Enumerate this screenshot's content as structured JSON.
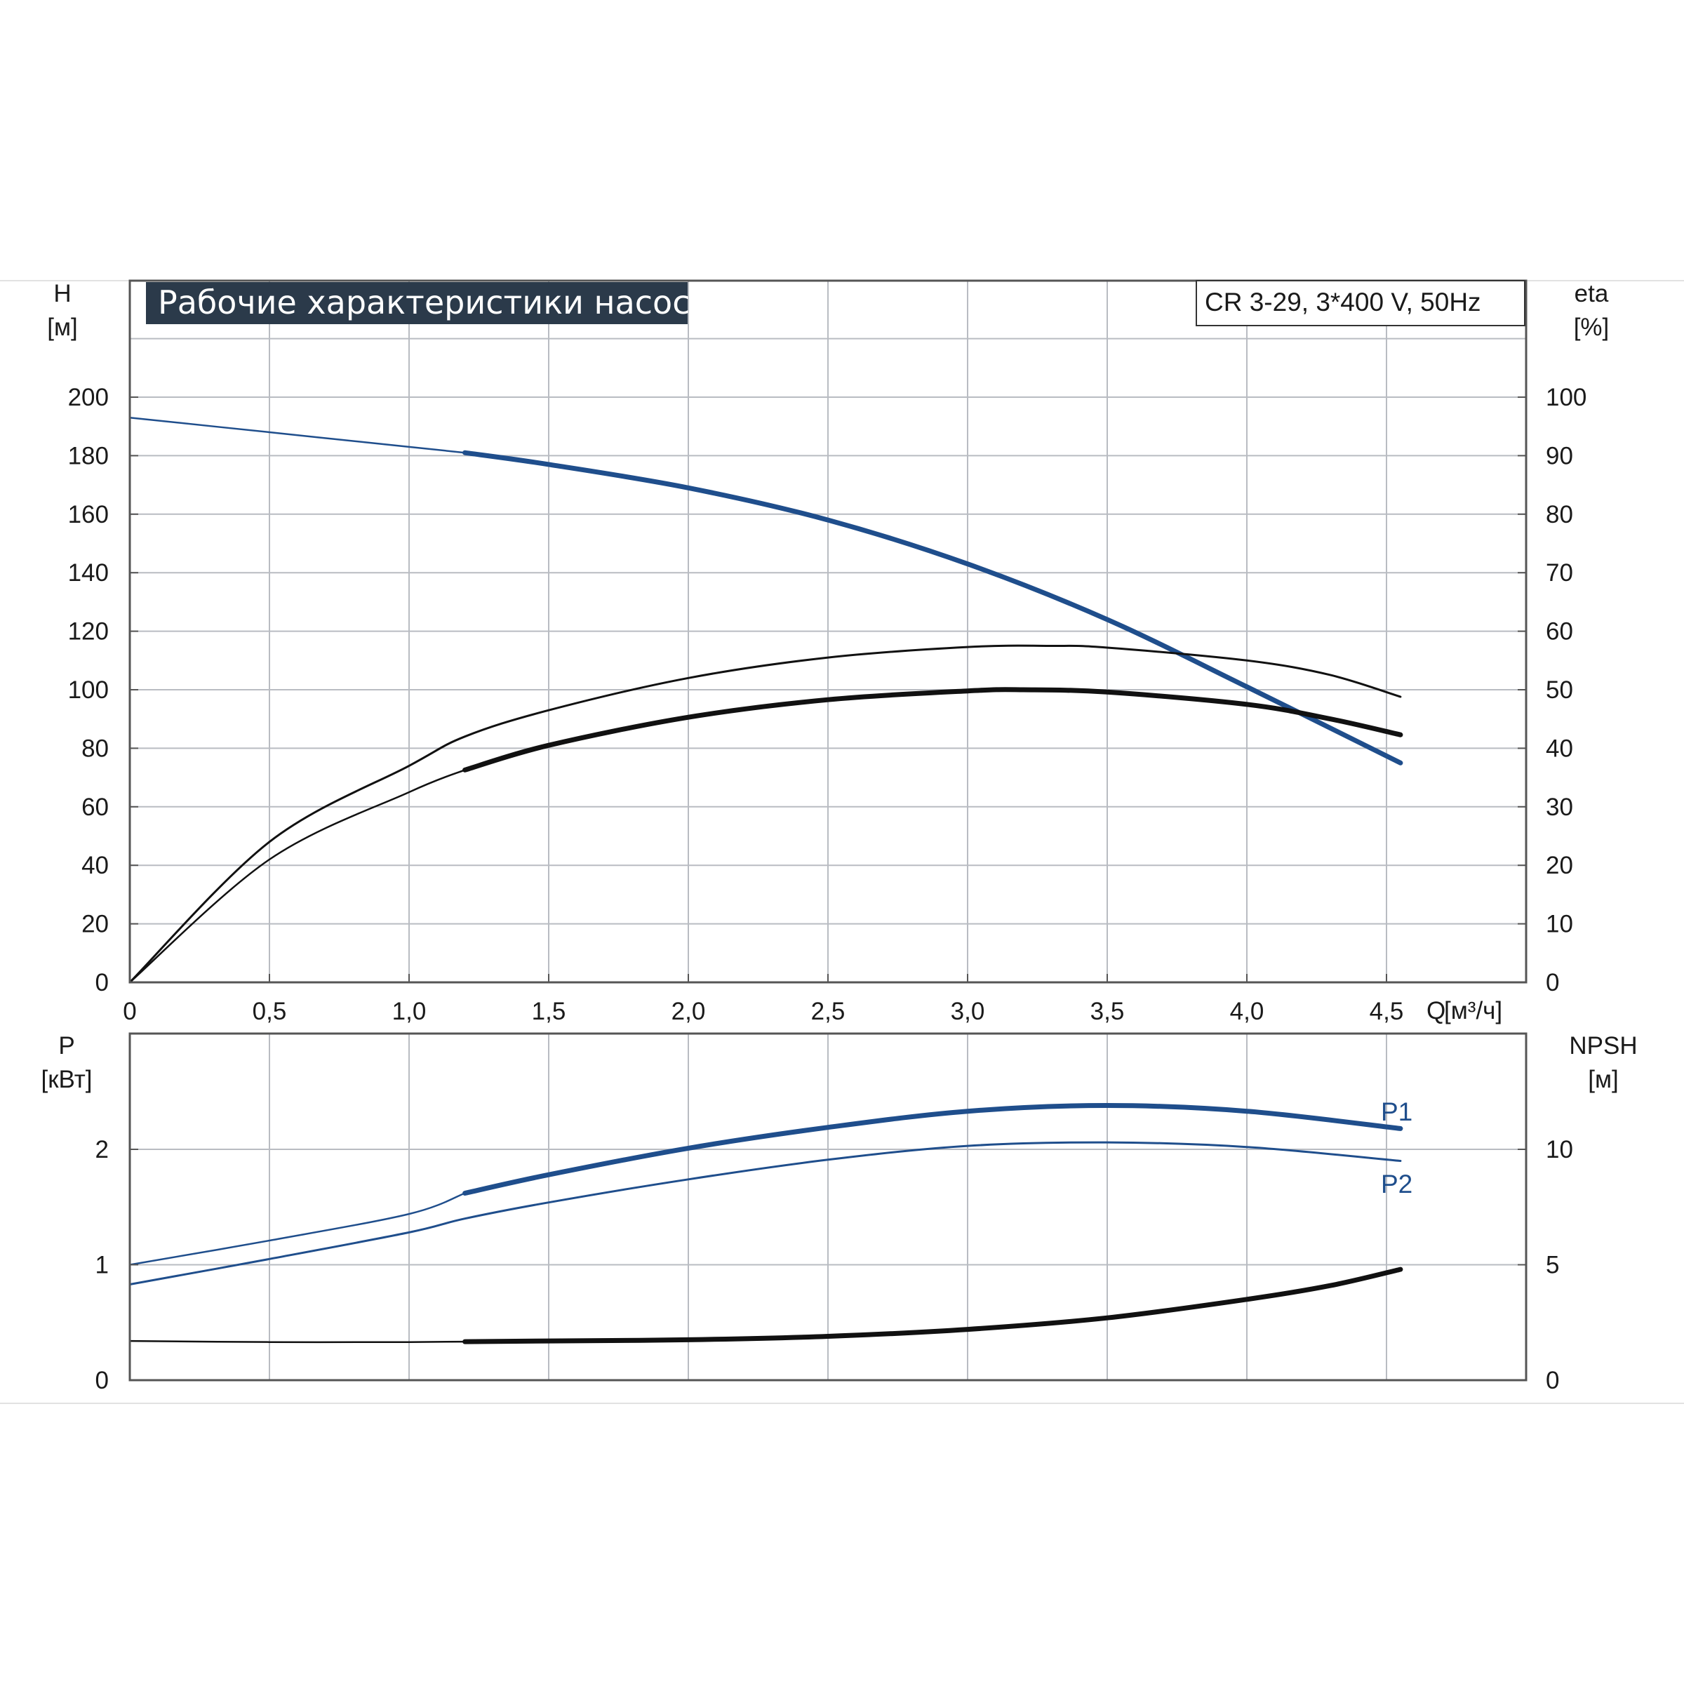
{
  "title": "Рабочие характеристики насоса",
  "model_label": "CR 3-29, 3*400 V, 50Hz",
  "colors": {
    "blue": "#1f4e8c",
    "black": "#111111",
    "grid": "#b9bcc2",
    "frame": "#555555",
    "title_bg": "#2b3a4a"
  },
  "chart_data": [
    {
      "type": "line",
      "name": "head-efficiency",
      "xlabel": "Q [м³/ч]",
      "x_axis_name": "Q",
      "x_axis_unit": "[м³/ч]",
      "xlim": [
        0,
        5.0
      ],
      "x_ticks": [
        "0",
        "0,5",
        "1,0",
        "1,5",
        "2,0",
        "2,5",
        "3,0",
        "3,5",
        "4,0",
        "4,5"
      ],
      "x_tick_values": [
        0,
        0.5,
        1.0,
        1.5,
        2.0,
        2.5,
        3.0,
        3.5,
        4.0,
        4.5
      ],
      "y_left": {
        "name": "H",
        "unit": "[м]",
        "lim": [
          0,
          200
        ],
        "ticks": [
          "0",
          "20",
          "40",
          "60",
          "80",
          "100",
          "120",
          "140",
          "160",
          "180",
          "200"
        ],
        "tick_values": [
          0,
          20,
          40,
          60,
          80,
          100,
          120,
          140,
          160,
          180,
          200
        ]
      },
      "y_right": {
        "name": "eta",
        "unit": "[%]",
        "lim": [
          0,
          100
        ],
        "ticks": [
          "0",
          "10",
          "20",
          "30",
          "40",
          "50",
          "60",
          "70",
          "80",
          "90",
          "100"
        ],
        "tick_values": [
          0,
          10,
          20,
          30,
          40,
          50,
          60,
          70,
          80,
          90,
          100
        ]
      },
      "grid": true,
      "series": [
        {
          "axis": "left",
          "color": "#1f4e8c",
          "style": "thin-then-thick",
          "thick_from": 1.2,
          "x": [
            0,
            0.5,
            1.0,
            1.2,
            1.5,
            2.0,
            2.5,
            3.0,
            3.5,
            4.0,
            4.55
          ],
          "y": [
            193,
            188,
            183,
            181,
            177,
            169,
            158,
            143,
            124,
            101,
            75
          ]
        },
        {
          "axis": "right",
          "color": "#111111",
          "style": "thin",
          "x": [
            0,
            0.5,
            1.0,
            1.2,
            1.5,
            2.0,
            2.5,
            3.0,
            3.3,
            3.5,
            4.0,
            4.3,
            4.55
          ],
          "y": [
            0,
            24,
            37,
            42,
            46.5,
            52,
            55.5,
            57.3,
            57.5,
            57.2,
            55,
            52.5,
            48.8
          ]
        },
        {
          "axis": "right",
          "color": "#111111",
          "style": "thin-then-thick",
          "thick_from": 1.2,
          "x": [
            0,
            0.5,
            1.0,
            1.2,
            1.5,
            2.0,
            2.5,
            3.0,
            3.2,
            3.5,
            4.0,
            4.3,
            4.55
          ],
          "y": [
            0,
            21,
            32.5,
            36.3,
            40.5,
            45.3,
            48.3,
            49.8,
            50,
            49.6,
            47.5,
            45,
            42.3
          ]
        }
      ]
    },
    {
      "type": "line",
      "name": "power-npsh",
      "xlim": [
        0,
        5.0
      ],
      "y_left": {
        "name": "P",
        "unit": "[кВт]",
        "lim": [
          0,
          3
        ],
        "ticks": [
          "0",
          "1",
          "2"
        ],
        "tick_values": [
          0,
          1,
          2
        ]
      },
      "y_right": {
        "name": "NPSH",
        "unit": "[м]",
        "lim": [
          0,
          15
        ],
        "ticks": [
          "0",
          "5",
          "10"
        ],
        "tick_values": [
          0,
          5,
          10
        ]
      },
      "grid": true,
      "series": [
        {
          "name": "P1",
          "axis": "left",
          "color": "#1f4e8c",
          "style": "thin-then-thick",
          "thick_from": 1.2,
          "x": [
            0,
            0.5,
            1.0,
            1.2,
            1.5,
            2.0,
            2.5,
            3.0,
            3.5,
            4.0,
            4.55
          ],
          "y": [
            1.0,
            1.21,
            1.44,
            1.62,
            1.78,
            2.01,
            2.19,
            2.33,
            2.38,
            2.33,
            2.18
          ]
        },
        {
          "name": "P2",
          "axis": "left",
          "color": "#1f4e8c",
          "style": "thin",
          "x": [
            0,
            0.5,
            1.0,
            1.2,
            1.5,
            2.0,
            2.5,
            3.0,
            3.5,
            4.0,
            4.55
          ],
          "y": [
            0.83,
            1.05,
            1.28,
            1.4,
            1.54,
            1.74,
            1.91,
            2.03,
            2.06,
            2.02,
            1.9
          ]
        },
        {
          "axis": "right",
          "color": "#111111",
          "style": "thin-then-thick",
          "thick_from": 1.2,
          "x": [
            0,
            0.5,
            1.0,
            1.2,
            1.5,
            2.0,
            2.5,
            3.0,
            3.5,
            4.0,
            4.3,
            4.55
          ],
          "y": [
            1.7,
            1.65,
            1.65,
            1.67,
            1.7,
            1.75,
            1.9,
            2.2,
            2.7,
            3.5,
            4.1,
            4.8
          ]
        }
      ]
    }
  ]
}
